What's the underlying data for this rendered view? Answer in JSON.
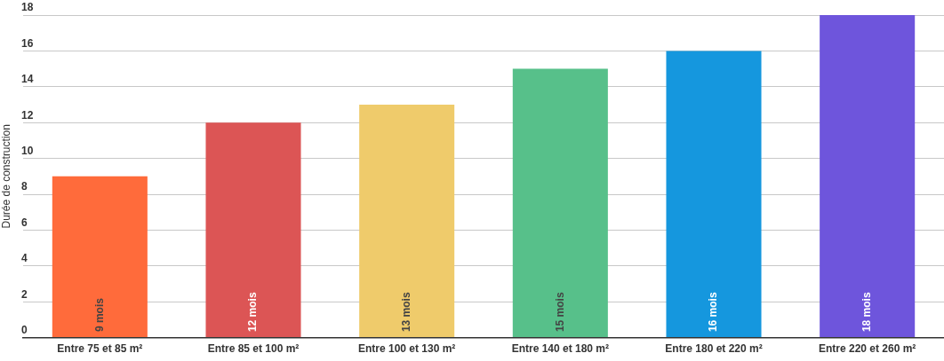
{
  "chart_data": {
    "type": "bar",
    "ylabel": "Durée de construction",
    "categories": [
      "Entre 75 et 85 m²",
      "Entre 85 et 100 m²",
      "Entre 100 et 130 m²",
      "Entre 140 et 180 m²",
      "Entre 180 et 220 m²",
      "Entre 220 et 260 m²"
    ],
    "values": [
      9,
      12,
      13,
      15,
      16,
      18
    ],
    "colors": [
      "#ff6b3b",
      "#dc5555",
      "#efcb6b",
      "#57c08a",
      "#1597de",
      "#6e55dc"
    ],
    "value_labels": [
      "9 mois",
      "12 mois",
      "13 mois",
      "15 mois",
      "16 mois",
      "18 mois"
    ],
    "ylim": [
      0,
      18
    ],
    "yticks": [
      0,
      2,
      4,
      6,
      8,
      10,
      12,
      14,
      16,
      18
    ],
    "grid": "y",
    "legend": false
  }
}
